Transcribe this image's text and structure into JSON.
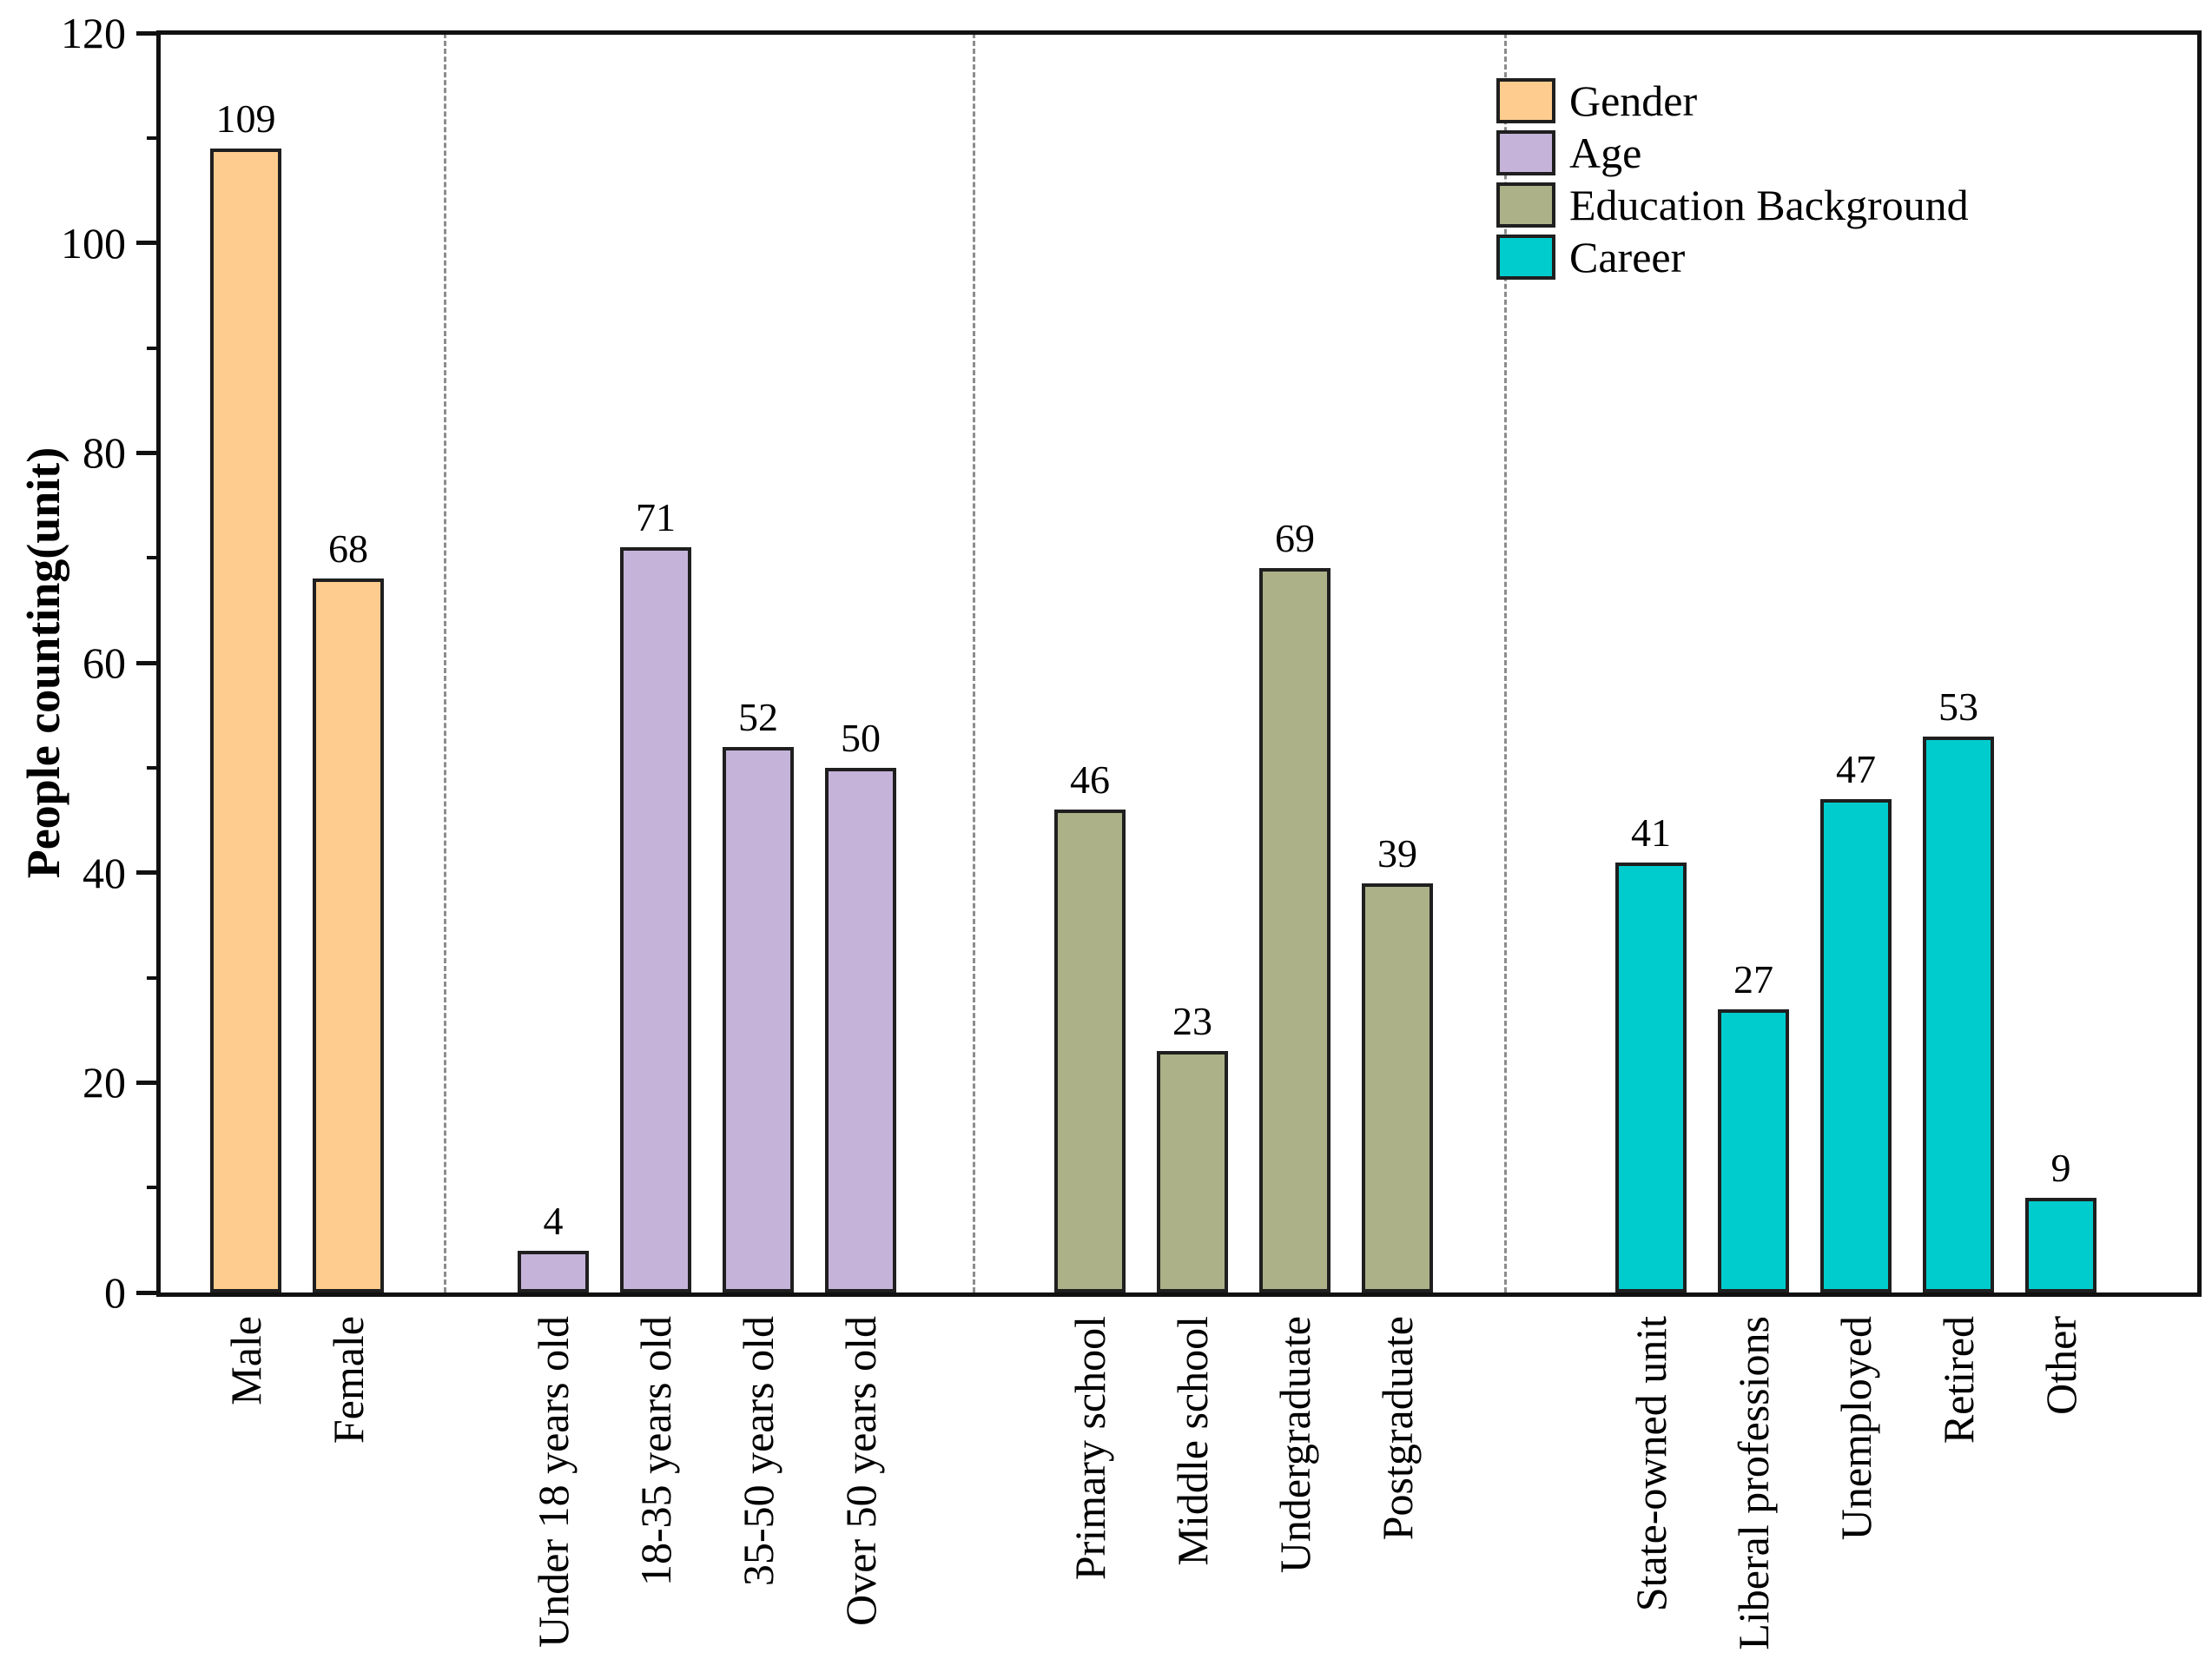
{
  "figure": {
    "background": "#ffffff",
    "axis_color": "#111111",
    "separator_style": "dashed",
    "separator_color": "#8c8c8c"
  },
  "chart_data": {
    "type": "bar",
    "title": "",
    "xlabel": "",
    "ylabel": "People counting(unit)",
    "ylim": [
      0,
      120
    ],
    "y_ticks": [
      0,
      20,
      40,
      60,
      80,
      100,
      120
    ],
    "y_minor_tick_step": 10,
    "grid": false,
    "bar_value_labels": true,
    "legend_position": "upper right",
    "legend_entries": [
      "Gender",
      "Age",
      "Education Background",
      "Career"
    ],
    "groups": [
      {
        "name": "Gender",
        "color": "#FDCC8E",
        "categories": [
          "Male",
          "Female"
        ],
        "values": [
          109,
          68
        ]
      },
      {
        "name": "Age",
        "color": "#C5B3D9",
        "categories": [
          "Under 18 years old",
          "18-35 years old",
          "35-50 years old",
          "Over 50 years old"
        ],
        "values": [
          4,
          71,
          52,
          50
        ]
      },
      {
        "name": "Education Background",
        "color": "#ACB188",
        "categories": [
          "Primary school",
          "Middle school",
          "Undergraduate",
          "Postgraduate"
        ],
        "values": [
          46,
          23,
          69,
          39
        ]
      },
      {
        "name": "Career",
        "color": "#00CCCE",
        "categories": [
          "State-owned unit",
          "Liberal professions",
          "Unemployed",
          "Retired",
          "Other"
        ],
        "values": [
          41,
          27,
          47,
          53,
          9
        ]
      }
    ]
  }
}
